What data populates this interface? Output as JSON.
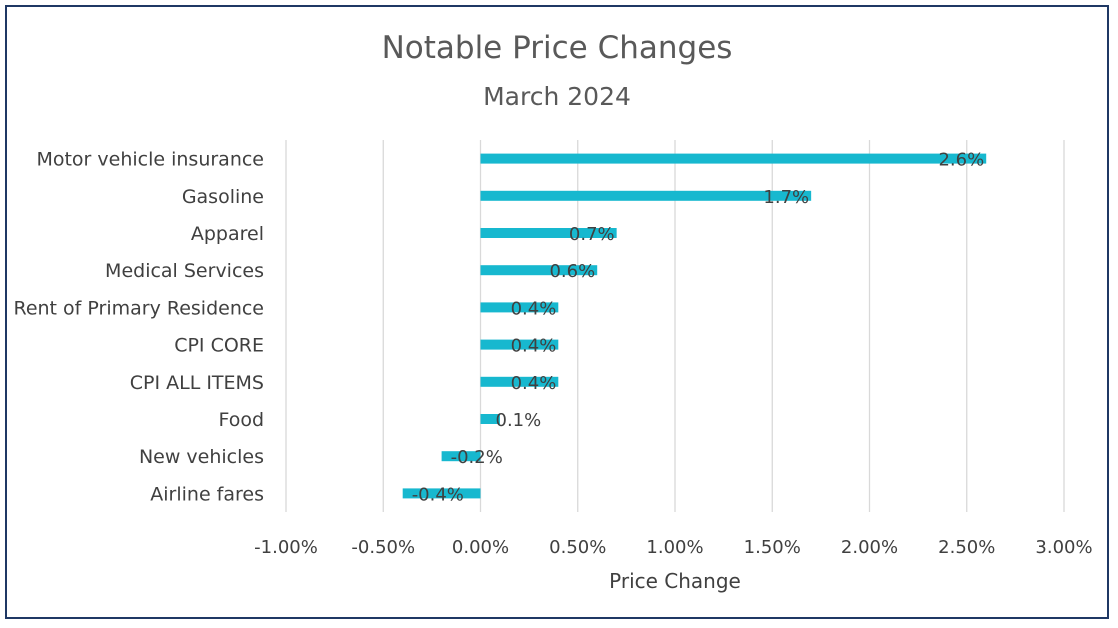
{
  "chart_data": {
    "type": "bar",
    "orientation": "horizontal",
    "title": "Notable Price Changes",
    "subtitle": "March 2024",
    "xlabel": "Price Change",
    "ylabel": "",
    "categories": [
      "Motor vehicle insurance",
      "Gasoline",
      "Apparel",
      "Medical Services",
      "Rent of Primary Residence",
      "CPI CORE",
      "CPI ALL ITEMS",
      "Food",
      "New vehicles",
      "Airline fares"
    ],
    "values": [
      2.6,
      1.7,
      0.7,
      0.6,
      0.4,
      0.4,
      0.4,
      0.1,
      -0.2,
      -0.4
    ],
    "data_labels": [
      "2.6%",
      "1.7%",
      "0.7%",
      "0.6%",
      "0.4%",
      "0.4%",
      "0.4%",
      "0.1%",
      "-0.2%",
      "-0.4%"
    ],
    "xlim": [
      -1.0,
      3.0
    ],
    "x_ticks": [
      -1.0,
      -0.5,
      0.0,
      0.5,
      1.0,
      1.5,
      2.0,
      2.5,
      3.0
    ],
    "x_tick_labels": [
      "-1.00%",
      "-0.50%",
      "0.00%",
      "0.50%",
      "1.00%",
      "1.50%",
      "2.00%",
      "2.50%",
      "3.00%"
    ],
    "grid": "vertical",
    "legend": "none",
    "bar_color": "#17b8cf",
    "text_color": "#404040",
    "gridline_color": "#d9d9d9",
    "border_color": "#1f3864"
  }
}
